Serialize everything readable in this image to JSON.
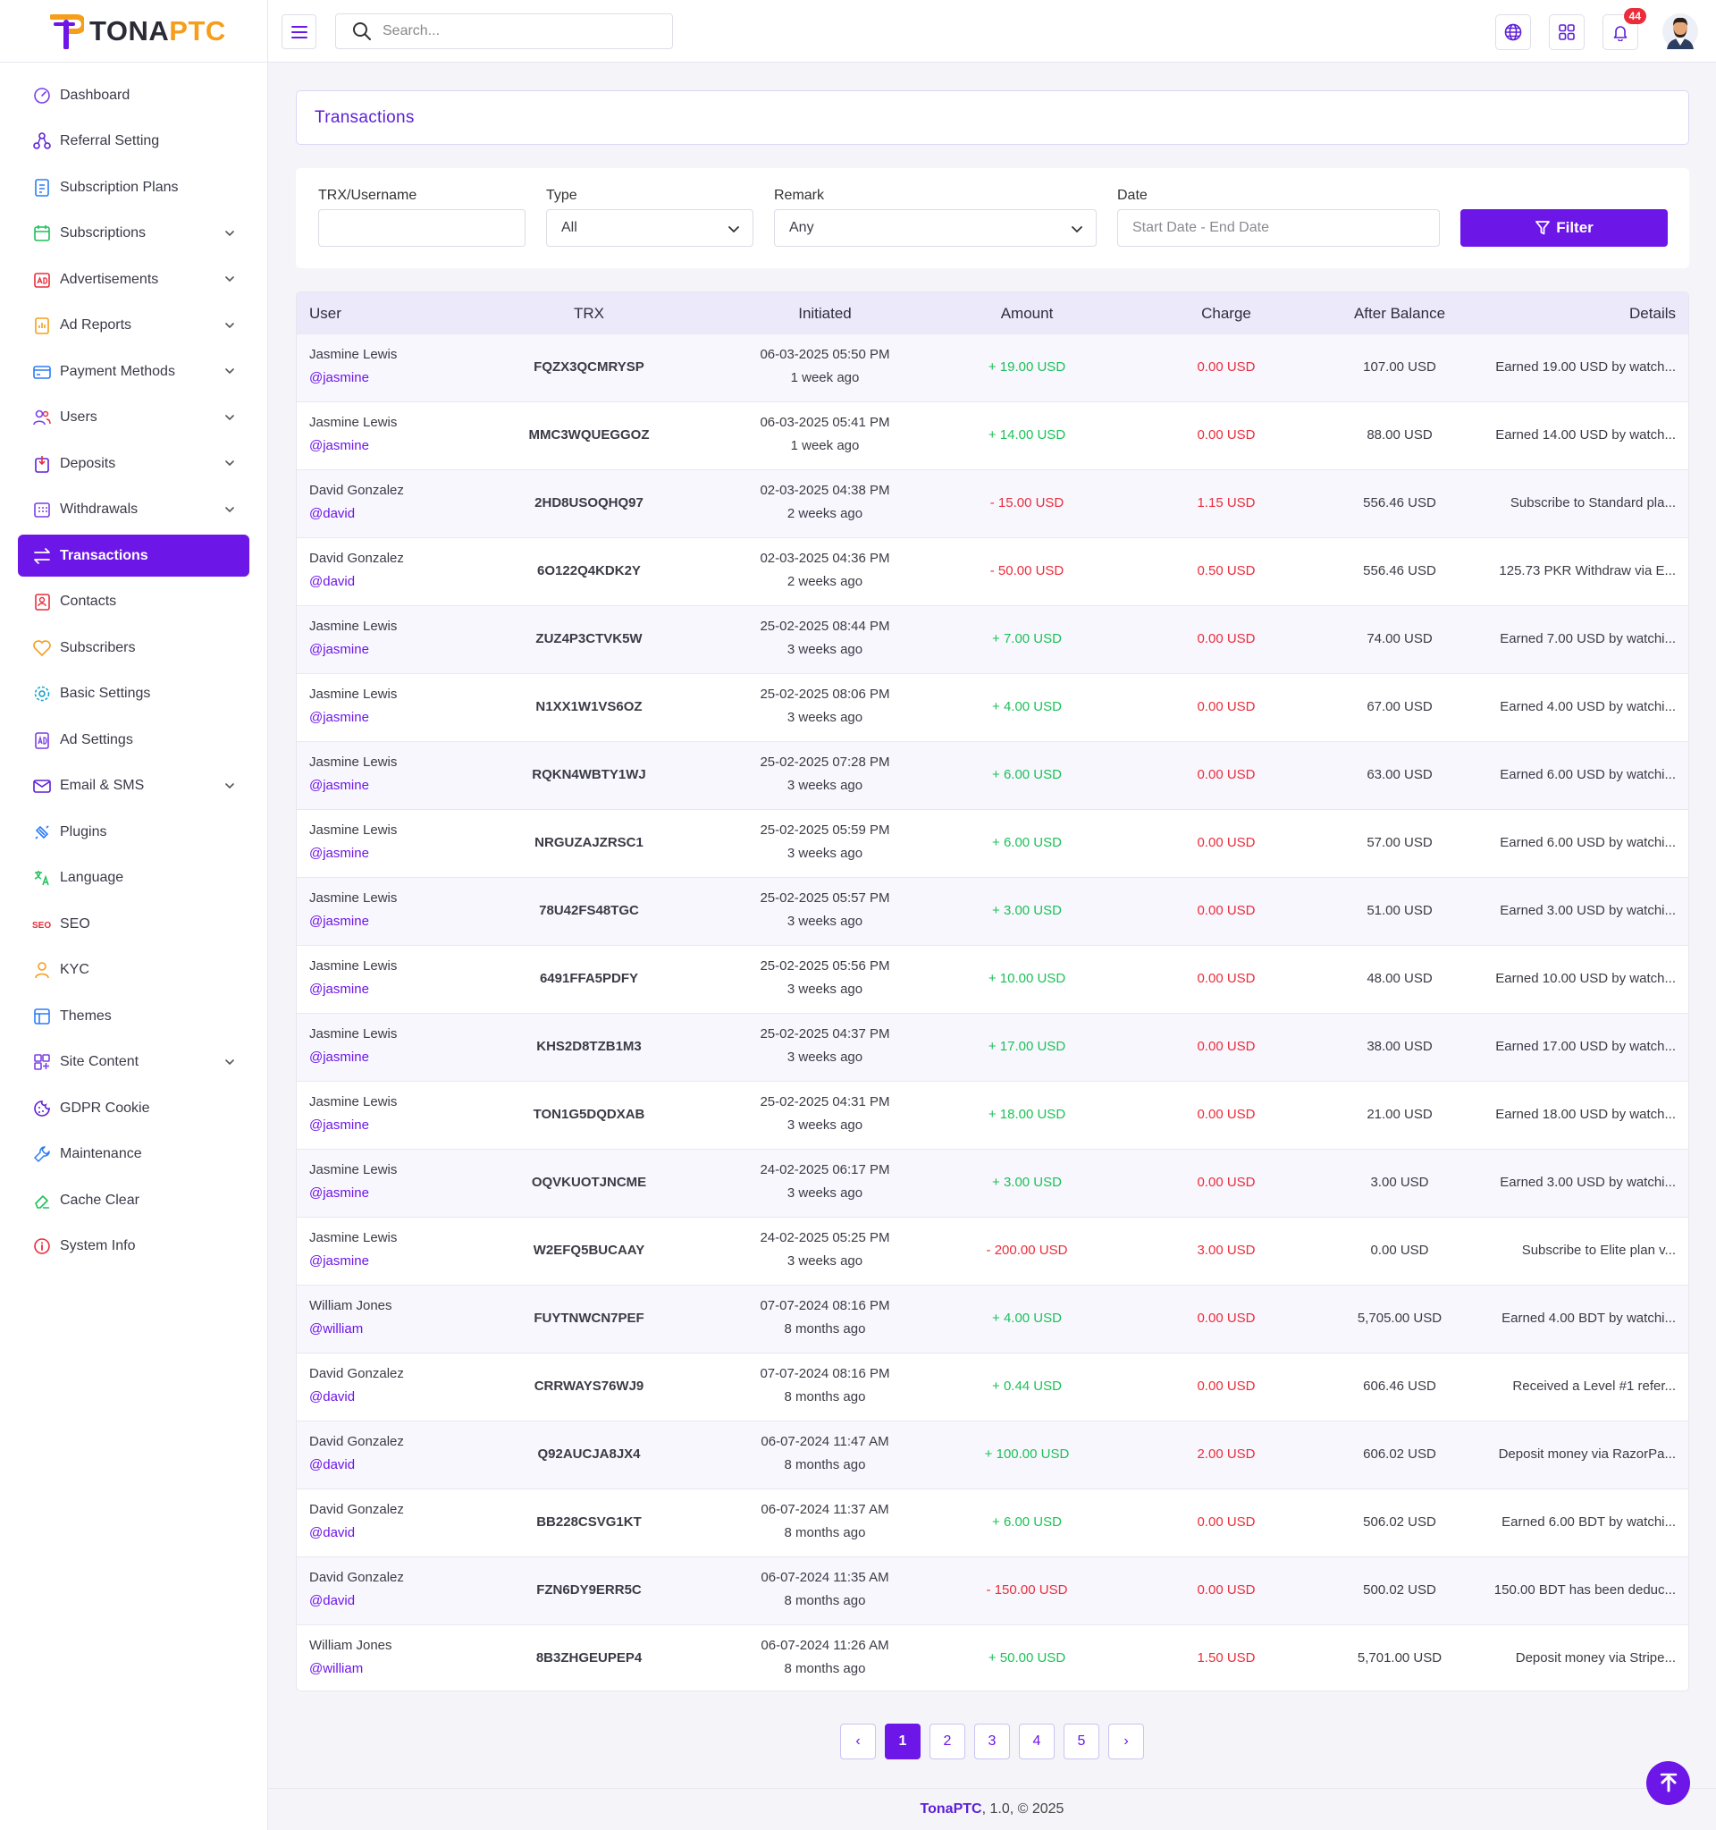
{
  "brand": {
    "name_part1": "TONA",
    "name_part2": "PTC",
    "accent": "#6d16e8",
    "logo_orange": "#f59e1b"
  },
  "header": {
    "search_placeholder": "Search...",
    "notifications_count": "44",
    "icons": [
      "menu-icon",
      "search-icon",
      "globe-icon",
      "apps-grid-icon",
      "bell-icon"
    ]
  },
  "sidebar": {
    "items": [
      {
        "label": "Dashboard",
        "icon": "dashboard-icon",
        "expandable": false,
        "active": false
      },
      {
        "label": "Referral Setting",
        "icon": "referral-icon",
        "expandable": false,
        "active": false
      },
      {
        "label": "Subscription Plans",
        "icon": "plans-icon",
        "expandable": false,
        "active": false
      },
      {
        "label": "Subscriptions",
        "icon": "calendar-icon",
        "expandable": true,
        "active": false
      },
      {
        "label": "Advertisements",
        "icon": "ad-icon",
        "expandable": true,
        "active": false
      },
      {
        "label": "Ad Reports",
        "icon": "report-icon",
        "expandable": true,
        "active": false
      },
      {
        "label": "Payment Methods",
        "icon": "card-icon",
        "expandable": true,
        "active": false
      },
      {
        "label": "Users",
        "icon": "users-icon",
        "expandable": true,
        "active": false
      },
      {
        "label": "Deposits",
        "icon": "deposit-icon",
        "expandable": true,
        "active": false
      },
      {
        "label": "Withdrawals",
        "icon": "withdraw-icon",
        "expandable": true,
        "active": false
      },
      {
        "label": "Transactions",
        "icon": "transactions-icon",
        "expandable": false,
        "active": true
      },
      {
        "label": "Contacts",
        "icon": "contacts-icon",
        "expandable": false,
        "active": false
      },
      {
        "label": "Subscribers",
        "icon": "subscribers-icon",
        "expandable": false,
        "active": false
      },
      {
        "label": "Basic Settings",
        "icon": "settings-icon",
        "expandable": false,
        "active": false
      },
      {
        "label": "Ad Settings",
        "icon": "ad-settings-icon",
        "expandable": false,
        "active": false
      },
      {
        "label": "Email & SMS",
        "icon": "mail-icon",
        "expandable": true,
        "active": false
      },
      {
        "label": "Plugins",
        "icon": "plugin-icon",
        "expandable": false,
        "active": false
      },
      {
        "label": "Language",
        "icon": "language-icon",
        "expandable": false,
        "active": false
      },
      {
        "label": "SEO",
        "icon": "seo-icon",
        "expandable": false,
        "active": false
      },
      {
        "label": "KYC",
        "icon": "kyc-icon",
        "expandable": false,
        "active": false
      },
      {
        "label": "Themes",
        "icon": "themes-icon",
        "expandable": false,
        "active": false
      },
      {
        "label": "Site Content",
        "icon": "content-icon",
        "expandable": true,
        "active": false
      },
      {
        "label": "GDPR Cookie",
        "icon": "cookie-icon",
        "expandable": false,
        "active": false
      },
      {
        "label": "Maintenance",
        "icon": "wrench-icon",
        "expandable": false,
        "active": false
      },
      {
        "label": "Cache Clear",
        "icon": "eraser-icon",
        "expandable": false,
        "active": false
      },
      {
        "label": "System Info",
        "icon": "info-icon",
        "expandable": false,
        "active": false
      }
    ]
  },
  "page": {
    "title": "Transactions"
  },
  "filters": {
    "trx_label": "TRX/Username",
    "trx_value": "",
    "type_label": "Type",
    "type_value": "All",
    "remark_label": "Remark",
    "remark_value": "Any",
    "date_label": "Date",
    "date_placeholder": "Start Date - End Date",
    "button_label": "Filter"
  },
  "table": {
    "columns": [
      "User",
      "TRX",
      "Initiated",
      "Amount",
      "Charge",
      "After Balance",
      "Details"
    ],
    "rows": [
      {
        "name": "Jasmine Lewis",
        "handle": "@jasmine",
        "trx": "FQZX3QCMRYSP",
        "date": "06-03-2025 05:50 PM",
        "ago": "1 week ago",
        "amount": "+ 19.00 USD",
        "sign": "pos",
        "charge": "0.00 USD",
        "balance": "107.00 USD",
        "details": "Earned 19.00 USD by watch..."
      },
      {
        "name": "Jasmine Lewis",
        "handle": "@jasmine",
        "trx": "MMC3WQUEGGOZ",
        "date": "06-03-2025 05:41 PM",
        "ago": "1 week ago",
        "amount": "+ 14.00 USD",
        "sign": "pos",
        "charge": "0.00 USD",
        "balance": "88.00 USD",
        "details": "Earned 14.00 USD by watch..."
      },
      {
        "name": "David Gonzalez",
        "handle": "@david",
        "trx": "2HD8USOQHQ97",
        "date": "02-03-2025 04:38 PM",
        "ago": "2 weeks ago",
        "amount": "- 15.00 USD",
        "sign": "neg",
        "charge": "1.15 USD",
        "balance": "556.46 USD",
        "details": "Subscribe to Standard pla..."
      },
      {
        "name": "David Gonzalez",
        "handle": "@david",
        "trx": "6O122Q4KDK2Y",
        "date": "02-03-2025 04:36 PM",
        "ago": "2 weeks ago",
        "amount": "- 50.00 USD",
        "sign": "neg",
        "charge": "0.50 USD",
        "balance": "556.46 USD",
        "details": "125.73 PKR Withdraw via E..."
      },
      {
        "name": "Jasmine Lewis",
        "handle": "@jasmine",
        "trx": "ZUZ4P3CTVK5W",
        "date": "25-02-2025 08:44 PM",
        "ago": "3 weeks ago",
        "amount": "+ 7.00 USD",
        "sign": "pos",
        "charge": "0.00 USD",
        "balance": "74.00 USD",
        "details": "Earned 7.00 USD by watchi..."
      },
      {
        "name": "Jasmine Lewis",
        "handle": "@jasmine",
        "trx": "N1XX1W1VS6OZ",
        "date": "25-02-2025 08:06 PM",
        "ago": "3 weeks ago",
        "amount": "+ 4.00 USD",
        "sign": "pos",
        "charge": "0.00 USD",
        "balance": "67.00 USD",
        "details": "Earned 4.00 USD by watchi..."
      },
      {
        "name": "Jasmine Lewis",
        "handle": "@jasmine",
        "trx": "RQKN4WBTY1WJ",
        "date": "25-02-2025 07:28 PM",
        "ago": "3 weeks ago",
        "amount": "+ 6.00 USD",
        "sign": "pos",
        "charge": "0.00 USD",
        "balance": "63.00 USD",
        "details": "Earned 6.00 USD by watchi..."
      },
      {
        "name": "Jasmine Lewis",
        "handle": "@jasmine",
        "trx": "NRGUZAJZRSC1",
        "date": "25-02-2025 05:59 PM",
        "ago": "3 weeks ago",
        "amount": "+ 6.00 USD",
        "sign": "pos",
        "charge": "0.00 USD",
        "balance": "57.00 USD",
        "details": "Earned 6.00 USD by watchi..."
      },
      {
        "name": "Jasmine Lewis",
        "handle": "@jasmine",
        "trx": "78U42FS48TGC",
        "date": "25-02-2025 05:57 PM",
        "ago": "3 weeks ago",
        "amount": "+ 3.00 USD",
        "sign": "pos",
        "charge": "0.00 USD",
        "balance": "51.00 USD",
        "details": "Earned 3.00 USD by watchi..."
      },
      {
        "name": "Jasmine Lewis",
        "handle": "@jasmine",
        "trx": "6491FFA5PDFY",
        "date": "25-02-2025 05:56 PM",
        "ago": "3 weeks ago",
        "amount": "+ 10.00 USD",
        "sign": "pos",
        "charge": "0.00 USD",
        "balance": "48.00 USD",
        "details": "Earned 10.00 USD by watch..."
      },
      {
        "name": "Jasmine Lewis",
        "handle": "@jasmine",
        "trx": "KHS2D8TZB1M3",
        "date": "25-02-2025 04:37 PM",
        "ago": "3 weeks ago",
        "amount": "+ 17.00 USD",
        "sign": "pos",
        "charge": "0.00 USD",
        "balance": "38.00 USD",
        "details": "Earned 17.00 USD by watch..."
      },
      {
        "name": "Jasmine Lewis",
        "handle": "@jasmine",
        "trx": "TON1G5DQDXAB",
        "date": "25-02-2025 04:31 PM",
        "ago": "3 weeks ago",
        "amount": "+ 18.00 USD",
        "sign": "pos",
        "charge": "0.00 USD",
        "balance": "21.00 USD",
        "details": "Earned 18.00 USD by watch..."
      },
      {
        "name": "Jasmine Lewis",
        "handle": "@jasmine",
        "trx": "OQVKUOTJNCME",
        "date": "24-02-2025 06:17 PM",
        "ago": "3 weeks ago",
        "amount": "+ 3.00 USD",
        "sign": "pos",
        "charge": "0.00 USD",
        "balance": "3.00 USD",
        "details": "Earned 3.00 USD by watchi..."
      },
      {
        "name": "Jasmine Lewis",
        "handle": "@jasmine",
        "trx": "W2EFQ5BUCAAY",
        "date": "24-02-2025 05:25 PM",
        "ago": "3 weeks ago",
        "amount": "- 200.00 USD",
        "sign": "neg",
        "charge": "3.00 USD",
        "balance": "0.00 USD",
        "details": "Subscribe to Elite plan v..."
      },
      {
        "name": "William Jones",
        "handle": "@william",
        "trx": "FUYTNWCN7PEF",
        "date": "07-07-2024 08:16 PM",
        "ago": "8 months ago",
        "amount": "+ 4.00 USD",
        "sign": "pos",
        "charge": "0.00 USD",
        "balance": "5,705.00 USD",
        "details": "Earned 4.00 BDT by watchi..."
      },
      {
        "name": "David Gonzalez",
        "handle": "@david",
        "trx": "CRRWAYS76WJ9",
        "date": "07-07-2024 08:16 PM",
        "ago": "8 months ago",
        "amount": "+ 0.44 USD",
        "sign": "pos",
        "charge": "0.00 USD",
        "balance": "606.46 USD",
        "details": "Received a Level #1 refer..."
      },
      {
        "name": "David Gonzalez",
        "handle": "@david",
        "trx": "Q92AUCJA8JX4",
        "date": "06-07-2024 11:47 AM",
        "ago": "8 months ago",
        "amount": "+ 100.00 USD",
        "sign": "pos",
        "charge": "2.00 USD",
        "balance": "606.02 USD",
        "details": "Deposit money via RazorPa..."
      },
      {
        "name": "David Gonzalez",
        "handle": "@david",
        "trx": "BB228CSVG1KT",
        "date": "06-07-2024 11:37 AM",
        "ago": "8 months ago",
        "amount": "+ 6.00 USD",
        "sign": "pos",
        "charge": "0.00 USD",
        "balance": "506.02 USD",
        "details": "Earned 6.00 BDT by watchi..."
      },
      {
        "name": "David Gonzalez",
        "handle": "@david",
        "trx": "FZN6DY9ERR5C",
        "date": "06-07-2024 11:35 AM",
        "ago": "8 months ago",
        "amount": "- 150.00 USD",
        "sign": "neg",
        "charge": "0.00 USD",
        "balance": "500.02 USD",
        "details": "150.00 BDT has been deduc..."
      },
      {
        "name": "William Jones",
        "handle": "@william",
        "trx": "8B3ZHGEUPEP4",
        "date": "06-07-2024 11:26 AM",
        "ago": "8 months ago",
        "amount": "+ 50.00 USD",
        "sign": "pos",
        "charge": "1.50 USD",
        "balance": "5,701.00 USD",
        "details": "Deposit money via Stripe..."
      }
    ]
  },
  "pagination": {
    "prev": "‹",
    "next": "›",
    "pages": [
      "1",
      "2",
      "3",
      "4",
      "5"
    ],
    "current": "1"
  },
  "footer": {
    "brand": "TonaPTC",
    "rest": ", 1.0, © 2025"
  }
}
